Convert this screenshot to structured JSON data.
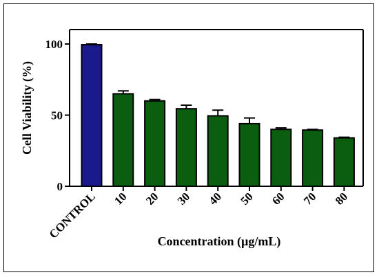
{
  "chart_data": {
    "type": "bar",
    "title": "",
    "xlabel": "Concentration (µg/mL)",
    "ylabel": "Cell Viability (%)",
    "ylim": [
      0,
      100
    ],
    "yticks": [
      0,
      50,
      100
    ],
    "categories": [
      "CONTROL",
      "10",
      "20",
      "30",
      "40",
      "50",
      "60",
      "70",
      "80"
    ],
    "values": [
      99.5,
      65,
      60,
      54.5,
      49.5,
      44,
      40,
      39.5,
      34
    ],
    "errors": [
      0.5,
      2,
      1,
      2.5,
      4,
      4,
      1,
      0.5,
      0.5
    ],
    "colors": [
      "#1a1a8c",
      "#0b5e10",
      "#0b5e10",
      "#0b5e10",
      "#0b5e10",
      "#0b5e10",
      "#0b5e10",
      "#0b5e10",
      "#0b5e10"
    ],
    "grid": false
  }
}
